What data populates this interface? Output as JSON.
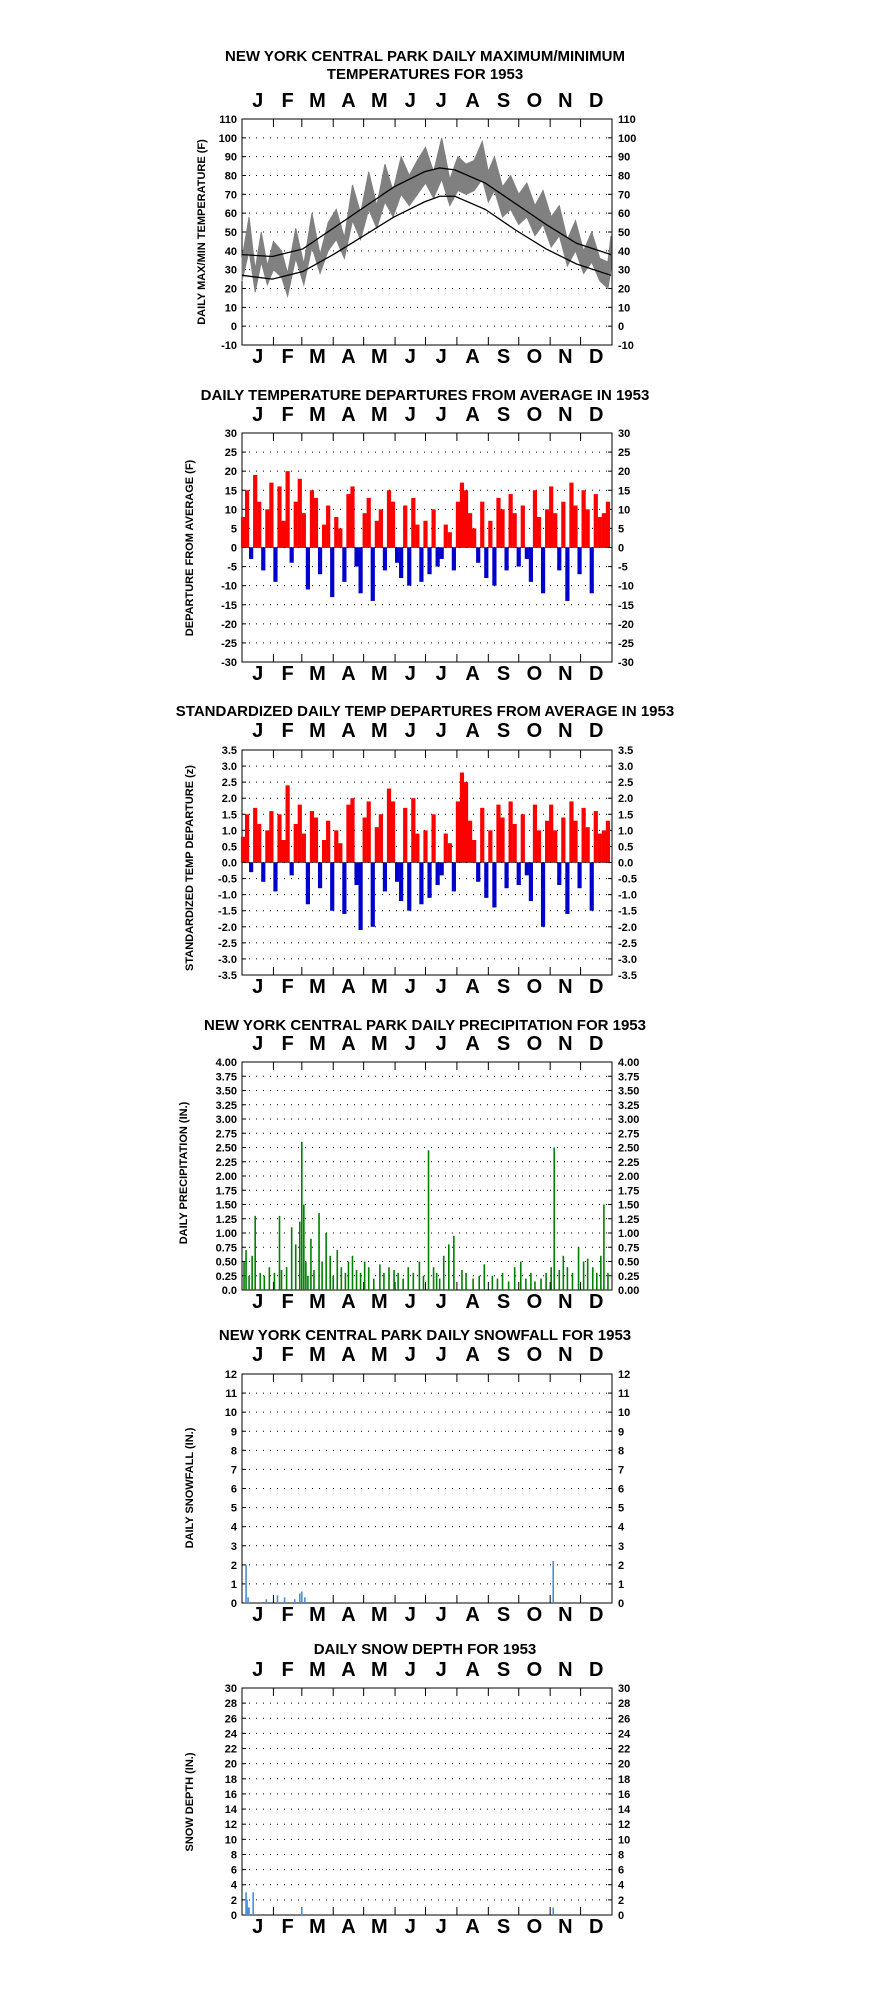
{
  "chart_data": [
    {
      "type": "line",
      "title": "NEW YORK CENTRAL PARK DAILY MAXIMUM/MINIMUM",
      "subtitle": "TEMPERATURES FOR 1953",
      "ylabel": "DAILY MAX/MIN TEMPERATURE (F)",
      "ylim": [
        -10,
        110
      ],
      "yticks": [
        "110",
        "100",
        "90",
        "80",
        "70",
        "60",
        "50",
        "40",
        "30",
        "20",
        "10",
        "0",
        "-10"
      ],
      "months": [
        "J",
        "F",
        "M",
        "A",
        "M",
        "J",
        "J",
        "A",
        "S",
        "O",
        "N",
        "D"
      ],
      "grid": true,
      "colors": {
        "observed": "#808080",
        "normal": "#000000"
      },
      "series": [
        {
          "key": "normal_max",
          "days": [
            1,
            31,
            61,
            91,
            121,
            151,
            181,
            196,
            211,
            241,
            271,
            301,
            331,
            365
          ],
          "values": [
            38,
            37,
            41,
            52,
            63,
            74,
            82,
            84,
            83,
            76,
            65,
            54,
            44,
            38
          ]
        },
        {
          "key": "normal_min",
          "days": [
            1,
            31,
            61,
            91,
            121,
            151,
            181,
            196,
            211,
            241,
            271,
            301,
            331,
            365
          ],
          "values": [
            27,
            25,
            29,
            38,
            48,
            58,
            66,
            69,
            69,
            62,
            51,
            41,
            33,
            27
          ]
        },
        {
          "key": "observed_max",
          "days": [
            1,
            8,
            14,
            20,
            26,
            32,
            40,
            46,
            54,
            62,
            70,
            78,
            86,
            94,
            102,
            110,
            118,
            126,
            134,
            142,
            150,
            158,
            166,
            174,
            182,
            190,
            198,
            206,
            214,
            222,
            230,
            238,
            244,
            250,
            258,
            266,
            274,
            282,
            290,
            298,
            306,
            314,
            322,
            330,
            338,
            346,
            354,
            362,
            365
          ],
          "values": [
            36,
            58,
            30,
            50,
            32,
            45,
            40,
            28,
            52,
            33,
            60,
            38,
            55,
            62,
            47,
            75,
            60,
            82,
            64,
            86,
            72,
            90,
            80,
            88,
            95,
            82,
            100,
            78,
            90,
            86,
            88,
            98,
            82,
            90,
            74,
            80,
            70,
            76,
            64,
            72,
            58,
            64,
            46,
            56,
            40,
            50,
            36,
            34,
            48
          ]
        },
        {
          "key": "observed_min",
          "days": [
            1,
            8,
            14,
            20,
            26,
            32,
            40,
            46,
            54,
            62,
            70,
            78,
            86,
            94,
            102,
            110,
            118,
            126,
            134,
            142,
            150,
            158,
            166,
            174,
            182,
            190,
            198,
            206,
            214,
            222,
            230,
            238,
            244,
            250,
            258,
            266,
            274,
            282,
            290,
            298,
            306,
            314,
            322,
            330,
            338,
            346,
            354,
            362,
            365
          ],
          "values": [
            24,
            40,
            18,
            34,
            22,
            30,
            26,
            16,
            36,
            22,
            42,
            28,
            40,
            46,
            36,
            56,
            46,
            62,
            52,
            66,
            58,
            70,
            64,
            70,
            76,
            68,
            78,
            64,
            72,
            70,
            72,
            78,
            66,
            72,
            58,
            62,
            54,
            58,
            48,
            54,
            42,
            48,
            32,
            40,
            28,
            34,
            24,
            20,
            30
          ]
        }
      ]
    },
    {
      "type": "bar",
      "title": "DAILY TEMPERATURE DEPARTURES FROM AVERAGE IN 1953",
      "ylabel": "DEPARTURE FROM AVERAGE (F)",
      "ylim": [
        -30,
        30
      ],
      "yticks": [
        "30",
        "25",
        "20",
        "15",
        "10",
        "5",
        "0",
        "-5",
        "-10",
        "-15",
        "-20",
        "-25",
        "-30"
      ],
      "months": [
        "J",
        "F",
        "M",
        "A",
        "M",
        "J",
        "J",
        "A",
        "S",
        "O",
        "N",
        "D"
      ],
      "grid": true,
      "colors": {
        "positive": "#ff0000",
        "negative": "#0000cc"
      },
      "days": [
        2,
        6,
        10,
        14,
        18,
        22,
        26,
        30,
        34,
        38,
        42,
        46,
        50,
        54,
        58,
        62,
        66,
        70,
        74,
        78,
        82,
        86,
        90,
        94,
        98,
        102,
        106,
        110,
        114,
        118,
        122,
        126,
        130,
        134,
        138,
        142,
        146,
        150,
        154,
        158,
        162,
        166,
        170,
        174,
        178,
        182,
        186,
        190,
        194,
        198,
        202,
        206,
        210,
        214,
        218,
        222,
        226,
        230,
        234,
        238,
        242,
        246,
        250,
        254,
        258,
        262,
        266,
        270,
        274,
        278,
        282,
        286,
        290,
        294,
        298,
        302,
        306,
        310,
        314,
        318,
        322,
        326,
        330,
        334,
        338,
        342,
        346,
        350,
        354,
        358,
        362
      ],
      "values": [
        8,
        15,
        -3,
        19,
        12,
        -6,
        10,
        17,
        -9,
        16,
        7,
        20,
        -4,
        12,
        18,
        9,
        -11,
        15,
        13,
        -7,
        6,
        11,
        -13,
        8,
        5,
        -9,
        14,
        16,
        -5,
        -12,
        9,
        13,
        -14,
        7,
        10,
        -6,
        15,
        12,
        -4,
        -8,
        11,
        -10,
        13,
        6,
        -9,
        7,
        -7,
        10,
        -5,
        -3,
        6,
        4,
        -6,
        12,
        17,
        15,
        9,
        5,
        -4,
        12,
        -8,
        7,
        -10,
        13,
        10,
        -6,
        14,
        9,
        -5,
        11,
        -3,
        -9,
        15,
        8,
        -12,
        10,
        16,
        9,
        -6,
        12,
        -14,
        17,
        11,
        -7,
        15,
        10,
        -12,
        14,
        8,
        9,
        12
      ]
    },
    {
      "type": "bar",
      "title": "STANDARDIZED DAILY TEMP DEPARTURES FROM AVERAGE IN 1953",
      "ylabel": "STANDARDIZED TEMP DEPARTURE (z)",
      "ylim": [
        -3.5,
        3.5
      ],
      "yticks": [
        "3.5",
        "3.0",
        "2.5",
        "2.0",
        "1.5",
        "1.0",
        "0.5",
        "0.0",
        "-0.5",
        "-1.0",
        "-1.5",
        "-2.0",
        "-2.5",
        "-3.0",
        "-3.5"
      ],
      "yticks_right": [
        "3.5",
        "3.0",
        "2.5",
        "2.0",
        "1.5",
        "1.0",
        "0.5",
        "0.0",
        "-0.5",
        "-1.0",
        "-1.5",
        "-2.0",
        "-2.5",
        "-3.0",
        "-3.5"
      ],
      "months": [
        "J",
        "F",
        "M",
        "A",
        "M",
        "J",
        "J",
        "A",
        "S",
        "O",
        "N",
        "D"
      ],
      "grid": true,
      "colors": {
        "positive": "#ff0000",
        "negative": "#0000cc"
      },
      "days": [
        2,
        6,
        10,
        14,
        18,
        22,
        26,
        30,
        34,
        38,
        42,
        46,
        50,
        54,
        58,
        62,
        66,
        70,
        74,
        78,
        82,
        86,
        90,
        94,
        98,
        102,
        106,
        110,
        114,
        118,
        122,
        126,
        130,
        134,
        138,
        142,
        146,
        150,
        154,
        158,
        162,
        166,
        170,
        174,
        178,
        182,
        186,
        190,
        194,
        198,
        202,
        206,
        210,
        214,
        218,
        222,
        226,
        230,
        234,
        238,
        242,
        246,
        250,
        254,
        258,
        262,
        266,
        270,
        274,
        278,
        282,
        286,
        290,
        294,
        298,
        302,
        306,
        310,
        314,
        318,
        322,
        326,
        330,
        334,
        338,
        342,
        346,
        350,
        354,
        358,
        362
      ],
      "values": [
        0.8,
        1.5,
        -0.3,
        1.7,
        1.2,
        -0.6,
        1.0,
        1.6,
        -0.9,
        1.5,
        0.7,
        2.4,
        -0.4,
        1.2,
        1.8,
        0.9,
        -1.3,
        1.6,
        1.4,
        -0.8,
        0.7,
        1.3,
        -1.5,
        1.0,
        0.6,
        -1.6,
        1.8,
        2.0,
        -0.7,
        -2.1,
        1.4,
        1.9,
        -2.0,
        1.1,
        1.5,
        -0.9,
        2.3,
        1.9,
        -0.6,
        -1.2,
        1.7,
        -1.5,
        2.0,
        0.9,
        -1.3,
        1.0,
        -1.1,
        1.5,
        -0.7,
        -0.4,
        0.9,
        0.6,
        -0.9,
        1.9,
        2.8,
        2.5,
        1.3,
        0.7,
        -0.6,
        1.7,
        -1.1,
        1.0,
        -1.4,
        1.8,
        1.4,
        -0.8,
        1.9,
        1.2,
        -0.7,
        1.5,
        -0.4,
        -1.2,
        1.8,
        1.0,
        -2.0,
        1.3,
        1.8,
        1.0,
        -0.7,
        1.4,
        -1.6,
        1.9,
        1.3,
        -0.8,
        1.7,
        1.1,
        -1.5,
        1.6,
        0.9,
        1.0,
        1.3
      ]
    },
    {
      "type": "bar",
      "title": "NEW YORK CENTRAL PARK DAILY PRECIPITATION FOR 1953",
      "ylabel": "DAILY PRECIPITATION (IN.)",
      "ylim": [
        0,
        4
      ],
      "yticks": [
        "4.00",
        "3.75",
        "3.50",
        "3.25",
        "3.00",
        "2.75",
        "2.50",
        "2.25",
        "2.00",
        "1.75",
        "1.50",
        "1.25",
        "1.00",
        "0.75",
        "0.50",
        "0.25",
        "0.0"
      ],
      "yticks_right": [
        "4.00",
        "3.75",
        "3.50",
        "3.25",
        "3.00",
        "2.75",
        "2.50",
        "2.25",
        "2.00",
        "1.75",
        "1.50",
        "1.25",
        "1.00",
        "0.75",
        "0.50",
        "0.25",
        "0.00"
      ],
      "months": [
        "J",
        "F",
        "M",
        "A",
        "M",
        "J",
        "J",
        "A",
        "S",
        "O",
        "N",
        "D"
      ],
      "grid": true,
      "colors": {
        "bars": "#008000"
      },
      "days": [
        3,
        5,
        8,
        11,
        14,
        19,
        23,
        28,
        33,
        38,
        40,
        45,
        50,
        54,
        58,
        60,
        62,
        64,
        66,
        69,
        72,
        77,
        80,
        84,
        88,
        91,
        95,
        99,
        103,
        106,
        110,
        114,
        118,
        122,
        126,
        131,
        137,
        141,
        146,
        151,
        155,
        160,
        165,
        170,
        176,
        180,
        185,
        190,
        193,
        196,
        200,
        205,
        210,
        218,
        222,
        229,
        235,
        240,
        248,
        253,
        258,
        264,
        270,
        276,
        281,
        286,
        290,
        296,
        301,
        306,
        309,
        314,
        318,
        322,
        327,
        333,
        338,
        342,
        347,
        351,
        355,
        358,
        362
      ],
      "values": [
        0.5,
        0.7,
        0.25,
        0.6,
        1.3,
        0.3,
        0.25,
        0.4,
        0.3,
        1.3,
        0.35,
        0.4,
        1.1,
        0.8,
        1.2,
        2.6,
        1.5,
        0.5,
        0.25,
        0.9,
        0.35,
        1.35,
        0.5,
        1.0,
        0.6,
        0.25,
        0.7,
        0.4,
        0.3,
        0.5,
        0.6,
        0.35,
        0.3,
        0.5,
        0.4,
        0.2,
        0.45,
        0.3,
        0.4,
        0.35,
        0.3,
        0.2,
        0.4,
        0.3,
        0.5,
        0.25,
        2.45,
        0.4,
        0.3,
        0.2,
        0.6,
        0.8,
        0.95,
        0.35,
        0.3,
        0.2,
        0.25,
        0.45,
        0.25,
        0.2,
        0.3,
        0.15,
        0.4,
        0.5,
        0.2,
        0.3,
        0.15,
        0.2,
        0.3,
        0.4,
        2.5,
        0.35,
        0.6,
        0.4,
        0.3,
        0.75,
        0.5,
        0.55,
        0.4,
        0.3,
        0.6,
        1.5,
        0.3
      ]
    },
    {
      "type": "bar",
      "title": "NEW YORK CENTRAL PARK DAILY SNOWFALL FOR 1953",
      "ylabel": "DAILY SNOWFALL (IN.)",
      "ylim": [
        0,
        12
      ],
      "yticks": [
        "12",
        "11",
        "10",
        "9",
        "8",
        "7",
        "6",
        "5",
        "4",
        "3",
        "2",
        "1",
        "0"
      ],
      "months": [
        "J",
        "F",
        "M",
        "A",
        "M",
        "J",
        "J",
        "A",
        "S",
        "O",
        "N",
        "D"
      ],
      "grid": true,
      "colors": {
        "bars": "#4a90d9"
      },
      "days": [
        5,
        7,
        25,
        36,
        43,
        53,
        58,
        60,
        63,
        308
      ],
      "values": [
        2.0,
        0.3,
        0.2,
        0.4,
        0.3,
        0.2,
        0.5,
        0.6,
        0.3,
        2.2
      ]
    },
    {
      "type": "bar",
      "title": "DAILY SNOW DEPTH FOR 1953",
      "ylabel": "SNOW DEPTH (IN.)",
      "ylim": [
        0,
        30
      ],
      "yticks": [
        "30",
        "28",
        "26",
        "24",
        "22",
        "20",
        "18",
        "16",
        "14",
        "12",
        "10",
        "8",
        "6",
        "4",
        "2",
        "0"
      ],
      "months": [
        "J",
        "F",
        "M",
        "A",
        "M",
        "J",
        "J",
        "A",
        "S",
        "O",
        "N",
        "D"
      ],
      "grid": true,
      "colors": {
        "bars": "#4a90d9"
      },
      "days": [
        5,
        6,
        7,
        8,
        12,
        60,
        308
      ],
      "values": [
        3,
        2,
        1,
        1,
        3,
        1,
        1
      ]
    }
  ]
}
